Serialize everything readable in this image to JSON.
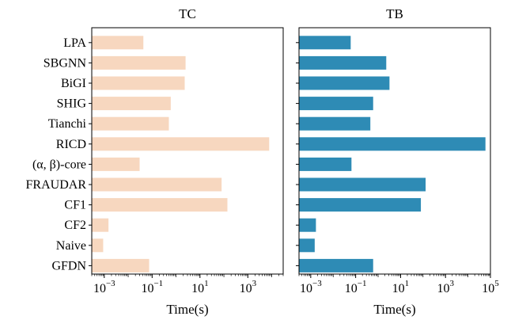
{
  "chart_data": [
    {
      "type": "bar",
      "orientation": "horizontal",
      "title": "TC",
      "xlabel": "Time(s)",
      "ylabel": "",
      "x_scale": "log",
      "xlim": [
        0.0003,
        30000
      ],
      "xticks": [
        0.001,
        0.1,
        10,
        1000
      ],
      "xtick_labels": [
        {
          "base": "10",
          "exp": "−3"
        },
        {
          "base": "10",
          "exp": "−1"
        },
        {
          "base": "10",
          "exp": "1"
        },
        {
          "base": "10",
          "exp": "3"
        }
      ],
      "bar_color": "#f7d7bf",
      "categories": [
        "LPA",
        "SBGNN",
        "BiGI",
        "SHIG",
        "Tianchi",
        "RICD",
        "(α, β)-core",
        "FRAUDAR",
        "CF1",
        "CF2",
        "Naive",
        "GFDN"
      ],
      "values": [
        0.043,
        2.5,
        2.3,
        0.6,
        0.5,
        7800,
        0.03,
        80,
        140,
        0.0015,
        0.0009,
        0.075
      ]
    },
    {
      "type": "bar",
      "orientation": "horizontal",
      "title": "TB",
      "xlabel": "Time(s)",
      "ylabel": "",
      "x_scale": "log",
      "xlim": [
        0.0003,
        100000
      ],
      "xticks": [
        0.001,
        0.1,
        10,
        1000,
        100000
      ],
      "xtick_labels": [
        {
          "base": "10",
          "exp": "−3"
        },
        {
          "base": "10",
          "exp": "−1"
        },
        {
          "base": "10",
          "exp": "1"
        },
        {
          "base": "10",
          "exp": "3"
        },
        {
          "base": "10",
          "exp": "5"
        }
      ],
      "bar_color": "#2e8bb5",
      "categories": [
        "LPA",
        "SBGNN",
        "BiGI",
        "SHIG",
        "Tianchi",
        "RICD",
        "(α, β)-core",
        "FRAUDAR",
        "CF1",
        "CF2",
        "Naive",
        "GFDN"
      ],
      "values": [
        0.06,
        2.3,
        3.2,
        0.6,
        0.45,
        60000,
        0.065,
        130,
        80,
        0.0017,
        0.0015,
        0.6
      ]
    }
  ]
}
